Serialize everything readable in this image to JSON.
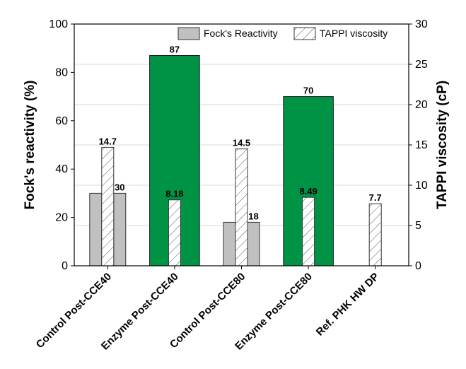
{
  "chart_data": {
    "type": "bar",
    "categories": [
      "Control Post-CCE40",
      "Enzyme Post-CCE40",
      "Control Post-CCE80",
      "Enzyme Post-CCE80",
      "Ref. PHK HW DP"
    ],
    "series": [
      {
        "name": "Fock's Reactivity",
        "axis": "left",
        "values": [
          30,
          87,
          18,
          70,
          null
        ],
        "labels": [
          "30",
          "87",
          "18",
          "70",
          ""
        ]
      },
      {
        "name": "TAPPI viscosity",
        "axis": "right",
        "values": [
          14.7,
          8.18,
          14.5,
          8.49,
          7.7
        ],
        "labels": [
          "14.7",
          "8.18",
          "14.5",
          "8.49",
          "7.7"
        ]
      }
    ],
    "ylabel": "Fock's reactivity (%)",
    "y2label": "TAPPI viscosity (cP)",
    "ylim": [
      0,
      100
    ],
    "y2lim": [
      0,
      30
    ],
    "yticks": [
      "0",
      "20",
      "40",
      "60",
      "80",
      "100"
    ],
    "y2ticks": [
      "0",
      "5",
      "10",
      "15",
      "20",
      "25",
      "30"
    ],
    "legend_position": "top-right",
    "grid": true,
    "colors": {
      "control_bar": "#c0c0c0",
      "enzyme_bar": "#009245",
      "hatch": "#555555",
      "grid": "#d9d9d9"
    }
  }
}
